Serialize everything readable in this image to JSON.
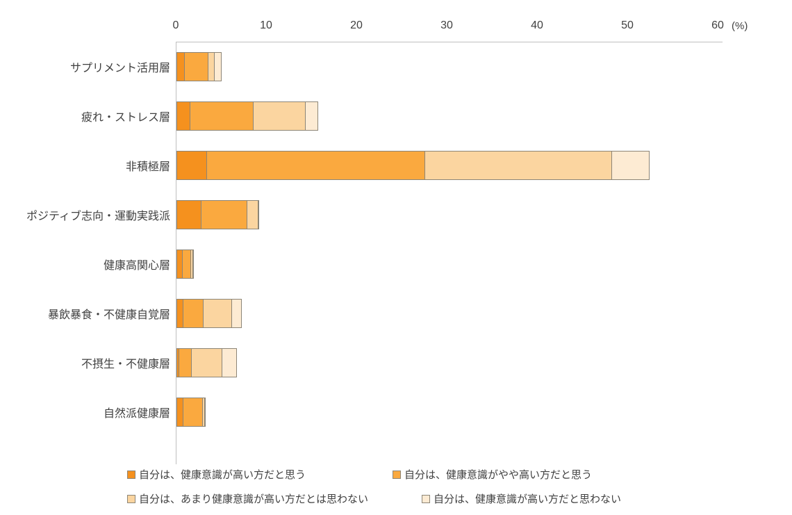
{
  "chart_data": {
    "type": "bar",
    "orientation": "horizontal",
    "stacked": true,
    "title": "",
    "xlabel": "",
    "ylabel": "",
    "unit_label": "(%)",
    "xlim": [
      0,
      60
    ],
    "ticks": [
      0,
      10,
      20,
      30,
      40,
      50,
      60
    ],
    "grid": false,
    "legend_position": "bottom",
    "categories": [
      "サプリメント活用層",
      "疲れ・ストレス層",
      "非積極層",
      "ポジティブ志向・運動実践派",
      "健康高関心層",
      "暴飲暴食・不健康自覚層",
      "不摂生・不健康層",
      "自然派健康層"
    ],
    "series": [
      {
        "name": "自分は、健康意識が高い方だと思う",
        "color": "#F5911E",
        "values": [
          0.9,
          1.5,
          3.4,
          2.8,
          0.7,
          0.8,
          0.3,
          0.8
        ]
      },
      {
        "name": "自分は、健康意識がやや高い方だと思う",
        "color": "#FAA93F",
        "values": [
          2.7,
          7.1,
          24.2,
          5.1,
          1.0,
          2.3,
          1.5,
          2.2
        ]
      },
      {
        "name": "自分は、あまり健康意識が高い方だとは思わない",
        "color": "#FBD5A0",
        "values": [
          0.8,
          5.9,
          20.8,
          1.3,
          0.3,
          3.2,
          3.4,
          0.3
        ]
      },
      {
        "name": "自分は、健康意識が高い方だと思わない",
        "color": "#FDEBD3",
        "values": [
          0.8,
          1.4,
          4.2,
          0.2,
          0.1,
          1.2,
          1.7,
          0.1
        ]
      }
    ]
  },
  "styles": {
    "axis_color": "#bfbfbf",
    "text_color": "#404040",
    "segment_border": "#8c8577",
    "background": "#ffffff"
  }
}
